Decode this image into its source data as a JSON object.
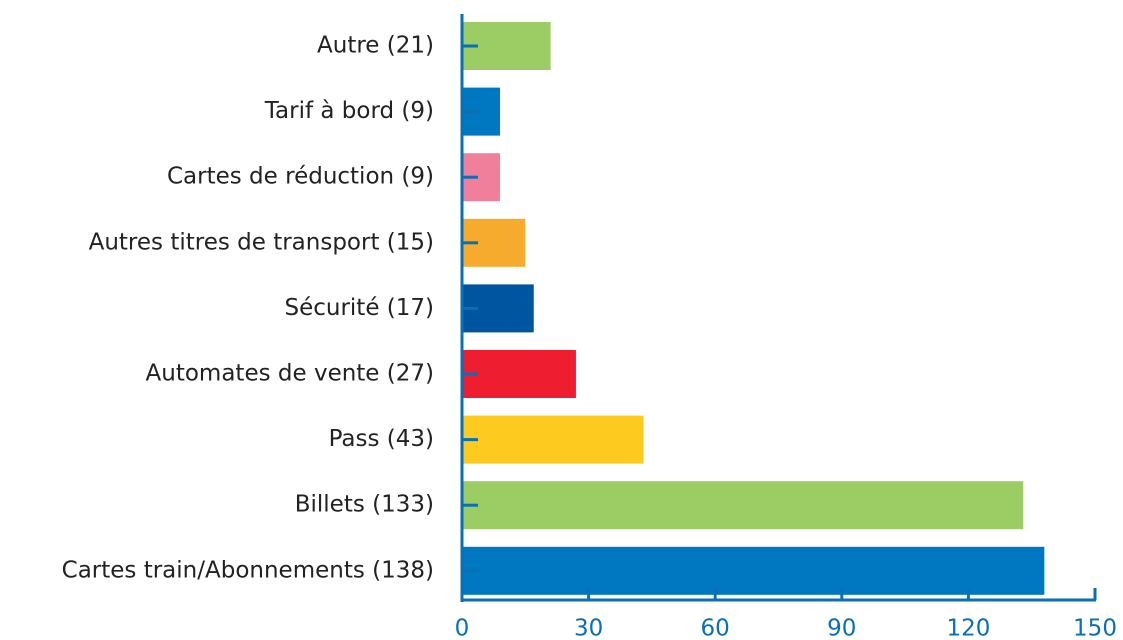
{
  "chart_data": {
    "type": "bar",
    "orientation": "horizontal",
    "categories": [
      "Autre (21)",
      "Tarif à bord (9)",
      "Cartes de réduction (9)",
      "Autres titres de transport (15)",
      "Sécurité (17)",
      "Automates de vente (27)",
      "Pass (43)",
      "Billets (133)",
      "Cartes train/Abonnements (138)"
    ],
    "values": [
      21,
      9,
      9,
      15,
      17,
      27,
      43,
      133,
      138
    ],
    "colors": [
      "#9bcd64",
      "#0078c1",
      "#f07f9c",
      "#f6ab2f",
      "#0055a0",
      "#ee1d2f",
      "#fdcb1f",
      "#9bcd64",
      "#0078c1"
    ],
    "xlim": [
      0,
      150
    ],
    "xticks": [
      0,
      30,
      60,
      90,
      120,
      150
    ],
    "axis_color": "#0a6fb5"
  }
}
